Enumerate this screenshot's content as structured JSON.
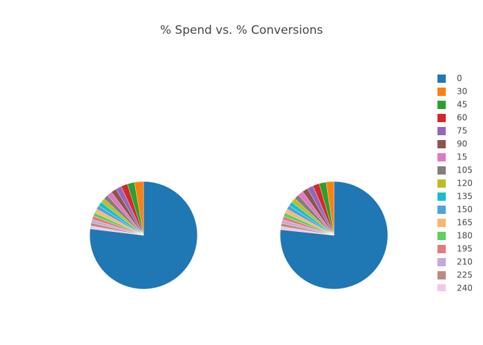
{
  "chart_data": {
    "type": "pie",
    "title": "% Spend vs. % Conversions",
    "categories": [
      "0",
      "30",
      "45",
      "60",
      "75",
      "90",
      "15",
      "105",
      "120",
      "135",
      "150",
      "165",
      "180",
      "195",
      "210",
      "225",
      "240"
    ],
    "colors": [
      "#1f77b4",
      "#ff7f0e",
      "#2ca02c",
      "#d62728",
      "#9467bd",
      "#8c564b",
      "#e377c2",
      "#7f7f7f",
      "#bcbd22",
      "#17becf",
      "#4fa3dc",
      "#fdb56e",
      "#5fcf5f",
      "#e57a7a",
      "#c5a8dc",
      "#be8a80",
      "#f2c6e6"
    ],
    "series": [
      {
        "values": [
          71,
          2.5,
          2,
          1.8,
          1.6,
          1.5,
          1.4,
          1.3,
          1.2,
          1.2,
          1.1,
          1.1,
          1,
          1,
          0.9,
          0.9,
          0.8
        ]
      },
      {
        "values": [
          72,
          2.2,
          2,
          1.8,
          1.7,
          1.6,
          1.5,
          1.4,
          1.3,
          1.2,
          1.2,
          1.1,
          1.1,
          1,
          1,
          0.9,
          0.9
        ]
      }
    ]
  }
}
